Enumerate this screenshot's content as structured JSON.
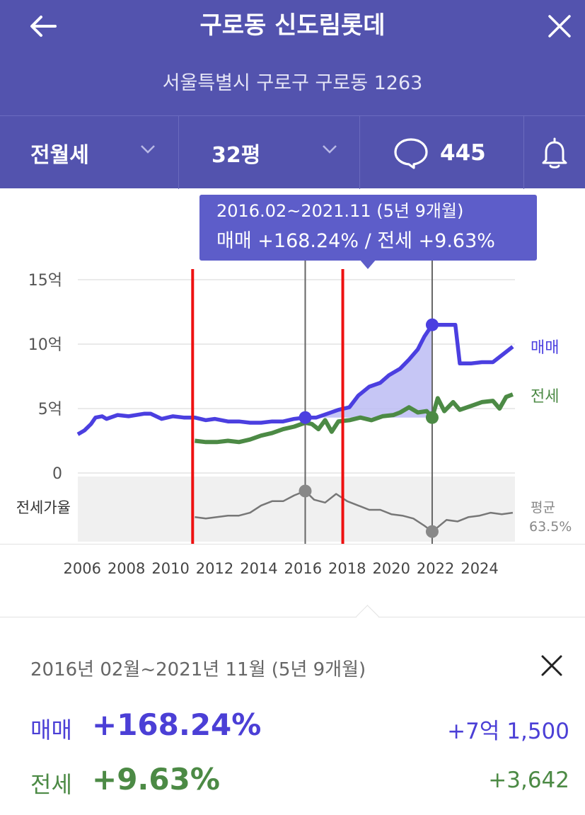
{
  "header": {
    "title": "구로동 신도림롯데",
    "address": "서울특별시 구로구 구로동 1263",
    "back_icon": "arrow-left-icon",
    "close_icon": "close-icon",
    "background": "#5353ae"
  },
  "filters": {
    "trade_type": "전월세",
    "size": "32평",
    "comment_count": "445",
    "comment_icon": "speech-bubble-icon",
    "alert_icon": "bell-icon"
  },
  "tooltip": {
    "period": "2016.02~2021.11 (5년 9개월)",
    "summary": "매매 +168.24%  /  전세 +9.63%",
    "background": "#5d5dc9"
  },
  "chart_data": {
    "type": "line",
    "title": "",
    "x_ticks": [
      "2006",
      "2008",
      "2010",
      "2012",
      "2014",
      "2016",
      "2018",
      "2020",
      "2022",
      "2024"
    ],
    "y_ticks": [
      "15억",
      "10억",
      "5억",
      "0"
    ],
    "ylim_eok": [
      0,
      15
    ],
    "xlim": [
      2005.8,
      2025.6
    ],
    "selected_range": {
      "start": 2016.1,
      "end": 2021.85
    },
    "ratio_label": "전세가율",
    "average_label": "평균",
    "average_value": "63.5%",
    "series": [
      {
        "name": "매매",
        "color": "#4b3fe0",
        "points": [
          [
            2005.8,
            3.0
          ],
          [
            2006.1,
            3.3
          ],
          [
            2006.4,
            3.8
          ],
          [
            2006.6,
            4.3
          ],
          [
            2006.9,
            4.4
          ],
          [
            2007.1,
            4.2
          ],
          [
            2007.6,
            4.5
          ],
          [
            2008.1,
            4.4
          ],
          [
            2008.8,
            4.6
          ],
          [
            2009.1,
            4.6
          ],
          [
            2009.6,
            4.2
          ],
          [
            2010.1,
            4.4
          ],
          [
            2010.6,
            4.3
          ],
          [
            2011.1,
            4.3
          ],
          [
            2011.6,
            4.1
          ],
          [
            2012.0,
            4.2
          ],
          [
            2012.6,
            4.0
          ],
          [
            2013.1,
            4.0
          ],
          [
            2013.6,
            3.9
          ],
          [
            2014.1,
            3.9
          ],
          [
            2014.6,
            4.0
          ],
          [
            2015.1,
            4.0
          ],
          [
            2015.6,
            4.2
          ],
          [
            2016.1,
            4.3
          ],
          [
            2016.6,
            4.3
          ],
          [
            2017.1,
            4.6
          ],
          [
            2017.6,
            4.9
          ],
          [
            2018.1,
            5.1
          ],
          [
            2018.5,
            6.0
          ],
          [
            2019.0,
            6.7
          ],
          [
            2019.5,
            7.0
          ],
          [
            2019.9,
            7.6
          ],
          [
            2020.4,
            8.1
          ],
          [
            2020.8,
            8.8
          ],
          [
            2021.2,
            9.6
          ],
          [
            2021.5,
            10.6
          ],
          [
            2021.85,
            11.5
          ],
          [
            2022.3,
            11.5
          ],
          [
            2022.9,
            11.5
          ],
          [
            2023.1,
            8.5
          ],
          [
            2023.6,
            8.5
          ],
          [
            2024.1,
            8.6
          ],
          [
            2024.6,
            8.6
          ],
          [
            2024.9,
            9.0
          ],
          [
            2025.2,
            9.4
          ],
          [
            2025.5,
            9.8
          ]
        ]
      },
      {
        "name": "전세",
        "color": "#4c8a45",
        "points": [
          [
            2011.1,
            2.5
          ],
          [
            2011.6,
            2.4
          ],
          [
            2012.1,
            2.4
          ],
          [
            2012.6,
            2.5
          ],
          [
            2013.1,
            2.4
          ],
          [
            2013.6,
            2.6
          ],
          [
            2014.1,
            2.9
          ],
          [
            2014.6,
            3.1
          ],
          [
            2015.1,
            3.4
          ],
          [
            2015.6,
            3.6
          ],
          [
            2016.1,
            3.9
          ],
          [
            2016.4,
            3.8
          ],
          [
            2016.7,
            3.4
          ],
          [
            2017.0,
            4.1
          ],
          [
            2017.3,
            3.2
          ],
          [
            2017.6,
            4.0
          ],
          [
            2018.1,
            4.1
          ],
          [
            2018.6,
            4.3
          ],
          [
            2019.1,
            4.1
          ],
          [
            2019.6,
            4.4
          ],
          [
            2020.1,
            4.5
          ],
          [
            2020.4,
            4.7
          ],
          [
            2020.8,
            5.1
          ],
          [
            2021.2,
            4.7
          ],
          [
            2021.6,
            4.8
          ],
          [
            2021.85,
            4.3
          ],
          [
            2022.1,
            5.8
          ],
          [
            2022.4,
            4.8
          ],
          [
            2022.8,
            5.5
          ],
          [
            2023.1,
            4.9
          ],
          [
            2023.6,
            5.2
          ],
          [
            2024.1,
            5.5
          ],
          [
            2024.6,
            5.6
          ],
          [
            2024.9,
            5.0
          ],
          [
            2025.2,
            5.9
          ],
          [
            2025.5,
            6.1
          ]
        ]
      },
      {
        "name": "전세가율",
        "color": "#777777",
        "points": [
          [
            2011.1,
            57
          ],
          [
            2011.6,
            56
          ],
          [
            2012.1,
            57
          ],
          [
            2012.6,
            58
          ],
          [
            2013.1,
            58
          ],
          [
            2013.6,
            60
          ],
          [
            2014.1,
            65
          ],
          [
            2014.6,
            68
          ],
          [
            2015.1,
            68
          ],
          [
            2015.6,
            72
          ],
          [
            2016.1,
            75
          ],
          [
            2016.5,
            69
          ],
          [
            2017.0,
            67
          ],
          [
            2017.5,
            73
          ],
          [
            2018.0,
            68
          ],
          [
            2018.5,
            65
          ],
          [
            2019.0,
            62
          ],
          [
            2019.5,
            62
          ],
          [
            2020.0,
            59
          ],
          [
            2020.5,
            58
          ],
          [
            2021.0,
            56
          ],
          [
            2021.5,
            51
          ],
          [
            2021.85,
            47
          ],
          [
            2022.1,
            50
          ],
          [
            2022.5,
            55
          ],
          [
            2023.0,
            54
          ],
          [
            2023.5,
            57
          ],
          [
            2024.0,
            58
          ],
          [
            2024.5,
            60
          ],
          [
            2025.0,
            59
          ],
          [
            2025.5,
            60
          ]
        ]
      }
    ],
    "markers": [
      {
        "series": "매매",
        "x": 2016.1,
        "y": 4.3
      },
      {
        "series": "매매",
        "x": 2021.85,
        "y": 11.5
      },
      {
        "series": "전세",
        "x": 2021.85,
        "y": 4.3
      },
      {
        "series": "전세가율",
        "x": 2016.1,
        "y": 75
      },
      {
        "series": "전세가율",
        "x": 2021.85,
        "y": 47
      }
    ],
    "red_annotation_lines": [
      2011.0,
      2017.8
    ],
    "grid": true
  },
  "summary": {
    "period": "2016년 02월~2021년 11월 (5년 9개월)",
    "sale_label": "매매",
    "sale_pct": "+168.24%",
    "sale_amount": "+7억 1,500",
    "rent_label": "전세",
    "rent_pct": "+9.63%",
    "rent_amount": "+3,642",
    "sale_color": "#4b3fd6",
    "rent_color": "#4c8a45"
  }
}
